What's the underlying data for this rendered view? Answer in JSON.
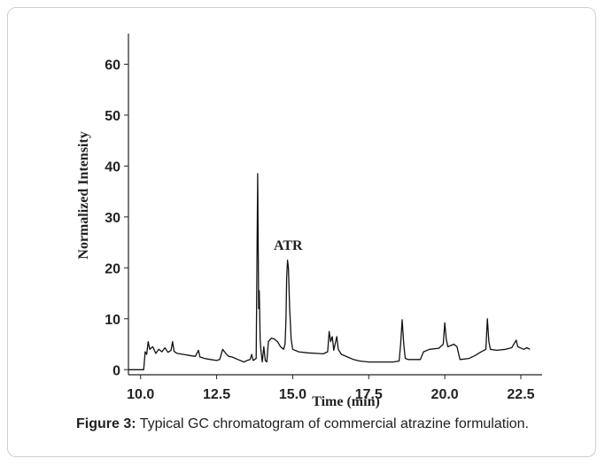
{
  "caption": {
    "label": "Figure 3:",
    "text": " Typical GC chromatogram of commercial atrazine formulation."
  },
  "chart_data": {
    "type": "line",
    "title": "",
    "xlabel": "Time (min)",
    "ylabel": "Normalized Intensity",
    "xlim": [
      9.6,
      23.2
    ],
    "ylim": [
      -1,
      66
    ],
    "xticks": [
      10.0,
      12.5,
      15.0,
      17.5,
      20.0,
      22.5
    ],
    "xtick_labels": [
      "10.0",
      "12.5",
      "15.0",
      "17.5",
      "20.0",
      "22.5"
    ],
    "yticks": [
      0,
      10,
      20,
      30,
      40,
      50,
      60
    ],
    "ytick_labels": [
      "0",
      "10",
      "20",
      "30",
      "40",
      "50",
      "60"
    ],
    "grid": false,
    "line_color": "#111111",
    "annotations": [
      {
        "text": "ATR",
        "x": 14.85,
        "y": 22.5
      }
    ],
    "series": [
      {
        "points": [
          [
            9.6,
            0
          ],
          [
            10.1,
            0
          ],
          [
            10.15,
            3.5
          ],
          [
            10.2,
            3
          ],
          [
            10.25,
            5.5
          ],
          [
            10.3,
            4
          ],
          [
            10.4,
            4.5
          ],
          [
            10.5,
            3.2
          ],
          [
            10.6,
            4
          ],
          [
            10.7,
            3.5
          ],
          [
            10.8,
            4.3
          ],
          [
            10.9,
            3.4
          ],
          [
            11.0,
            3.8
          ],
          [
            11.05,
            5.5
          ],
          [
            11.1,
            3.6
          ],
          [
            11.2,
            3.2
          ],
          [
            11.4,
            3
          ],
          [
            11.6,
            2.8
          ],
          [
            11.8,
            2.6
          ],
          [
            11.9,
            3.8
          ],
          [
            11.95,
            2.5
          ],
          [
            12.1,
            2.2
          ],
          [
            12.3,
            2.0
          ],
          [
            12.5,
            1.8
          ],
          [
            12.6,
            2.0
          ],
          [
            12.7,
            4.0
          ],
          [
            12.8,
            3.2
          ],
          [
            12.9,
            2.6
          ],
          [
            13.0,
            2.5
          ],
          [
            13.2,
            2.0
          ],
          [
            13.4,
            1.5
          ],
          [
            13.5,
            1.8
          ],
          [
            13.6,
            2.0
          ],
          [
            13.65,
            3.0
          ],
          [
            13.7,
            1.8
          ],
          [
            13.8,
            2.2
          ],
          [
            13.85,
            38.5
          ],
          [
            13.88,
            12
          ],
          [
            13.9,
            15.5
          ],
          [
            13.93,
            6
          ],
          [
            13.96,
            3.5
          ],
          [
            14.0,
            1.5
          ],
          [
            14.05,
            4.5
          ],
          [
            14.1,
            1.8
          ],
          [
            14.15,
            1.5
          ],
          [
            14.2,
            5.5
          ],
          [
            14.3,
            6.2
          ],
          [
            14.4,
            6.0
          ],
          [
            14.5,
            5.5
          ],
          [
            14.6,
            4.5
          ],
          [
            14.7,
            4.0
          ],
          [
            14.75,
            5.0
          ],
          [
            14.78,
            10
          ],
          [
            14.8,
            18
          ],
          [
            14.83,
            21.5
          ],
          [
            14.86,
            20
          ],
          [
            14.9,
            12
          ],
          [
            14.95,
            6
          ],
          [
            15.0,
            4
          ],
          [
            15.2,
            3.5
          ],
          [
            15.5,
            3.3
          ],
          [
            15.8,
            3.2
          ],
          [
            16.0,
            3.1
          ],
          [
            16.15,
            3.5
          ],
          [
            16.2,
            7.5
          ],
          [
            16.25,
            5.5
          ],
          [
            16.3,
            6.5
          ],
          [
            16.35,
            3.8
          ],
          [
            16.45,
            6.5
          ],
          [
            16.5,
            4.0
          ],
          [
            16.6,
            3.0
          ],
          [
            16.8,
            2.5
          ],
          [
            17.0,
            2.0
          ],
          [
            17.2,
            1.7
          ],
          [
            17.5,
            1.5
          ],
          [
            18.0,
            1.5
          ],
          [
            18.3,
            1.5
          ],
          [
            18.5,
            1.7
          ],
          [
            18.55,
            5.0
          ],
          [
            18.6,
            9.8
          ],
          [
            18.65,
            5.0
          ],
          [
            18.7,
            2.2
          ],
          [
            18.8,
            2.0
          ],
          [
            19.0,
            2.0
          ],
          [
            19.2,
            2.0
          ],
          [
            19.3,
            3.5
          ],
          [
            19.5,
            4.0
          ],
          [
            19.8,
            4.2
          ],
          [
            19.95,
            5.0
          ],
          [
            20.0,
            9.2
          ],
          [
            20.05,
            6.0
          ],
          [
            20.1,
            4.5
          ],
          [
            20.3,
            5.0
          ],
          [
            20.4,
            4.5
          ],
          [
            20.5,
            2.0
          ],
          [
            20.8,
            2.2
          ],
          [
            21.0,
            2.8
          ],
          [
            21.2,
            3.5
          ],
          [
            21.35,
            4.0
          ],
          [
            21.4,
            10.0
          ],
          [
            21.45,
            5.5
          ],
          [
            21.5,
            4.0
          ],
          [
            21.7,
            3.8
          ],
          [
            22.0,
            4.0
          ],
          [
            22.2,
            4.3
          ],
          [
            22.35,
            5.8
          ],
          [
            22.4,
            4.5
          ],
          [
            22.6,
            4.0
          ],
          [
            22.7,
            4.3
          ],
          [
            22.8,
            4.0
          ]
        ]
      }
    ]
  }
}
